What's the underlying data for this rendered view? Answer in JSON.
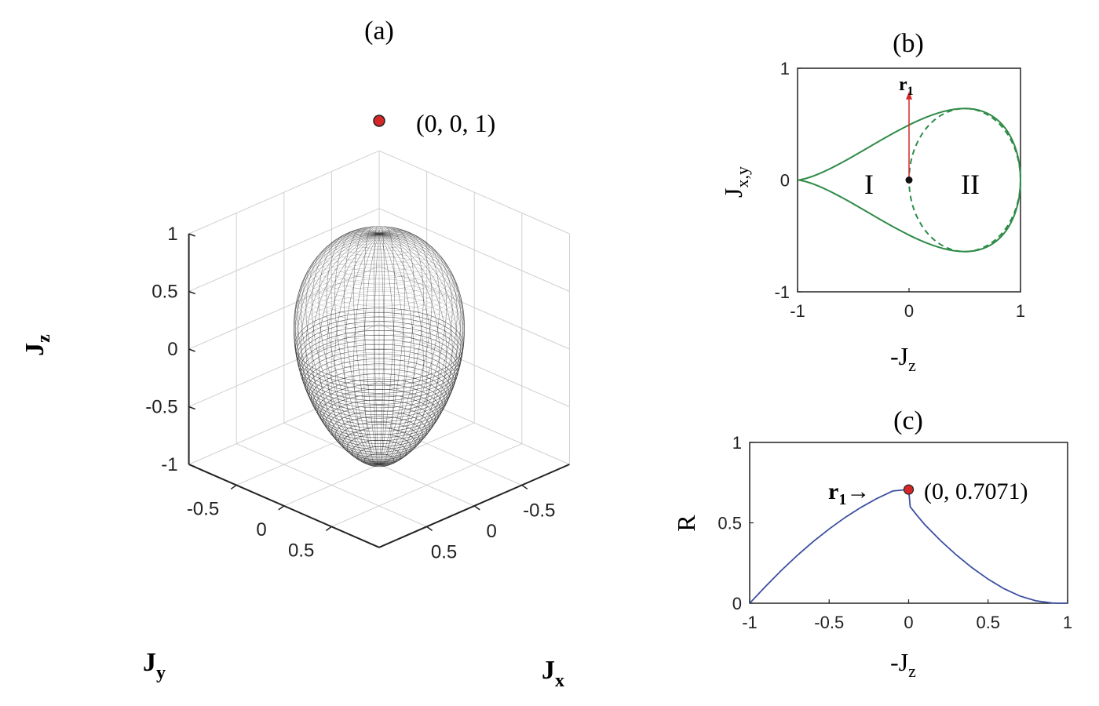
{
  "panels": {
    "a": {
      "label": "(a)"
    },
    "b": {
      "label": "(b)"
    },
    "c": {
      "label": "(c)"
    }
  },
  "chart_data": [
    {
      "id": "a",
      "type": "surface3d",
      "title": "(a)",
      "xlabel": "J",
      "xlabel_sub": "x",
      "ylabel": "J",
      "ylabel_sub": "y",
      "zlabel": "J",
      "zlabel_sub": "z",
      "xticks": [
        "-0.5",
        "0",
        "0.5"
      ],
      "yticks": [
        "-0.5",
        "0",
        "0.5"
      ],
      "zticks": [
        "1",
        "0.5",
        "0",
        "-0.5",
        "-1"
      ],
      "zlim": [
        -1,
        1
      ],
      "annotation": {
        "text": "(0, 0, 1)",
        "x": 0,
        "y": 0,
        "z": 1,
        "color": "#d62728"
      },
      "grid": true
    },
    {
      "id": "b",
      "type": "line",
      "title": "(b)",
      "xlabel": "-J",
      "xlabel_sub": "z",
      "ylabel": "J",
      "ylabel_sub": "x,y",
      "xlim": [
        -1,
        1
      ],
      "ylim": [
        -1,
        1
      ],
      "xticks": [
        "-1",
        "0",
        "1"
      ],
      "yticks": [
        "1",
        "0",
        "-1"
      ],
      "regions": [
        "I",
        "II"
      ],
      "vector_label": "r",
      "vector_label_sub": "1",
      "vector": {
        "from": [
          0,
          0
        ],
        "to": [
          0,
          0.7071
        ],
        "color": "#d62728"
      },
      "origin": {
        "x": 0,
        "y": 0
      },
      "series": [
        {
          "style": "solid",
          "color": "#2e8b47",
          "shape": "teardrop-outline"
        },
        {
          "style": "dashed",
          "color": "#2e8b47",
          "shape": "inner-circle",
          "center": [
            0.5,
            0
          ],
          "radius": 0.5
        }
      ]
    },
    {
      "id": "c",
      "type": "line",
      "title": "(c)",
      "xlabel": "-J",
      "xlabel_sub": "z",
      "ylabel": "R",
      "xlim": [
        -1,
        1
      ],
      "ylim": [
        0,
        1
      ],
      "xticks": [
        "-1",
        "-0.5",
        "0",
        "0.5",
        "1"
      ],
      "yticks": [
        "1",
        "0.5",
        "0"
      ],
      "annotation": {
        "text": "(0, 0.7071)",
        "x": 0,
        "y": 0.7071,
        "color": "#d62728"
      },
      "marker_label": "r",
      "marker_label_sub": "1",
      "marker_arrow": "→",
      "series": [
        {
          "color": "#3b4fa0",
          "x": [
            -1,
            -0.9,
            -0.8,
            -0.7,
            -0.6,
            -0.5,
            -0.4,
            -0.3,
            -0.2,
            -0.1,
            0,
            0.01,
            0.05,
            0.1,
            0.2,
            0.3,
            0.4,
            0.5,
            0.6,
            0.7,
            0.8,
            0.9,
            0.95,
            1
          ],
          "y": [
            0,
            0.105,
            0.205,
            0.298,
            0.384,
            0.462,
            0.533,
            0.596,
            0.651,
            0.698,
            0.7071,
            0.6,
            0.55,
            0.49,
            0.39,
            0.3,
            0.22,
            0.15,
            0.09,
            0.045,
            0.015,
            0.002,
            0,
            0
          ]
        }
      ]
    }
  ]
}
